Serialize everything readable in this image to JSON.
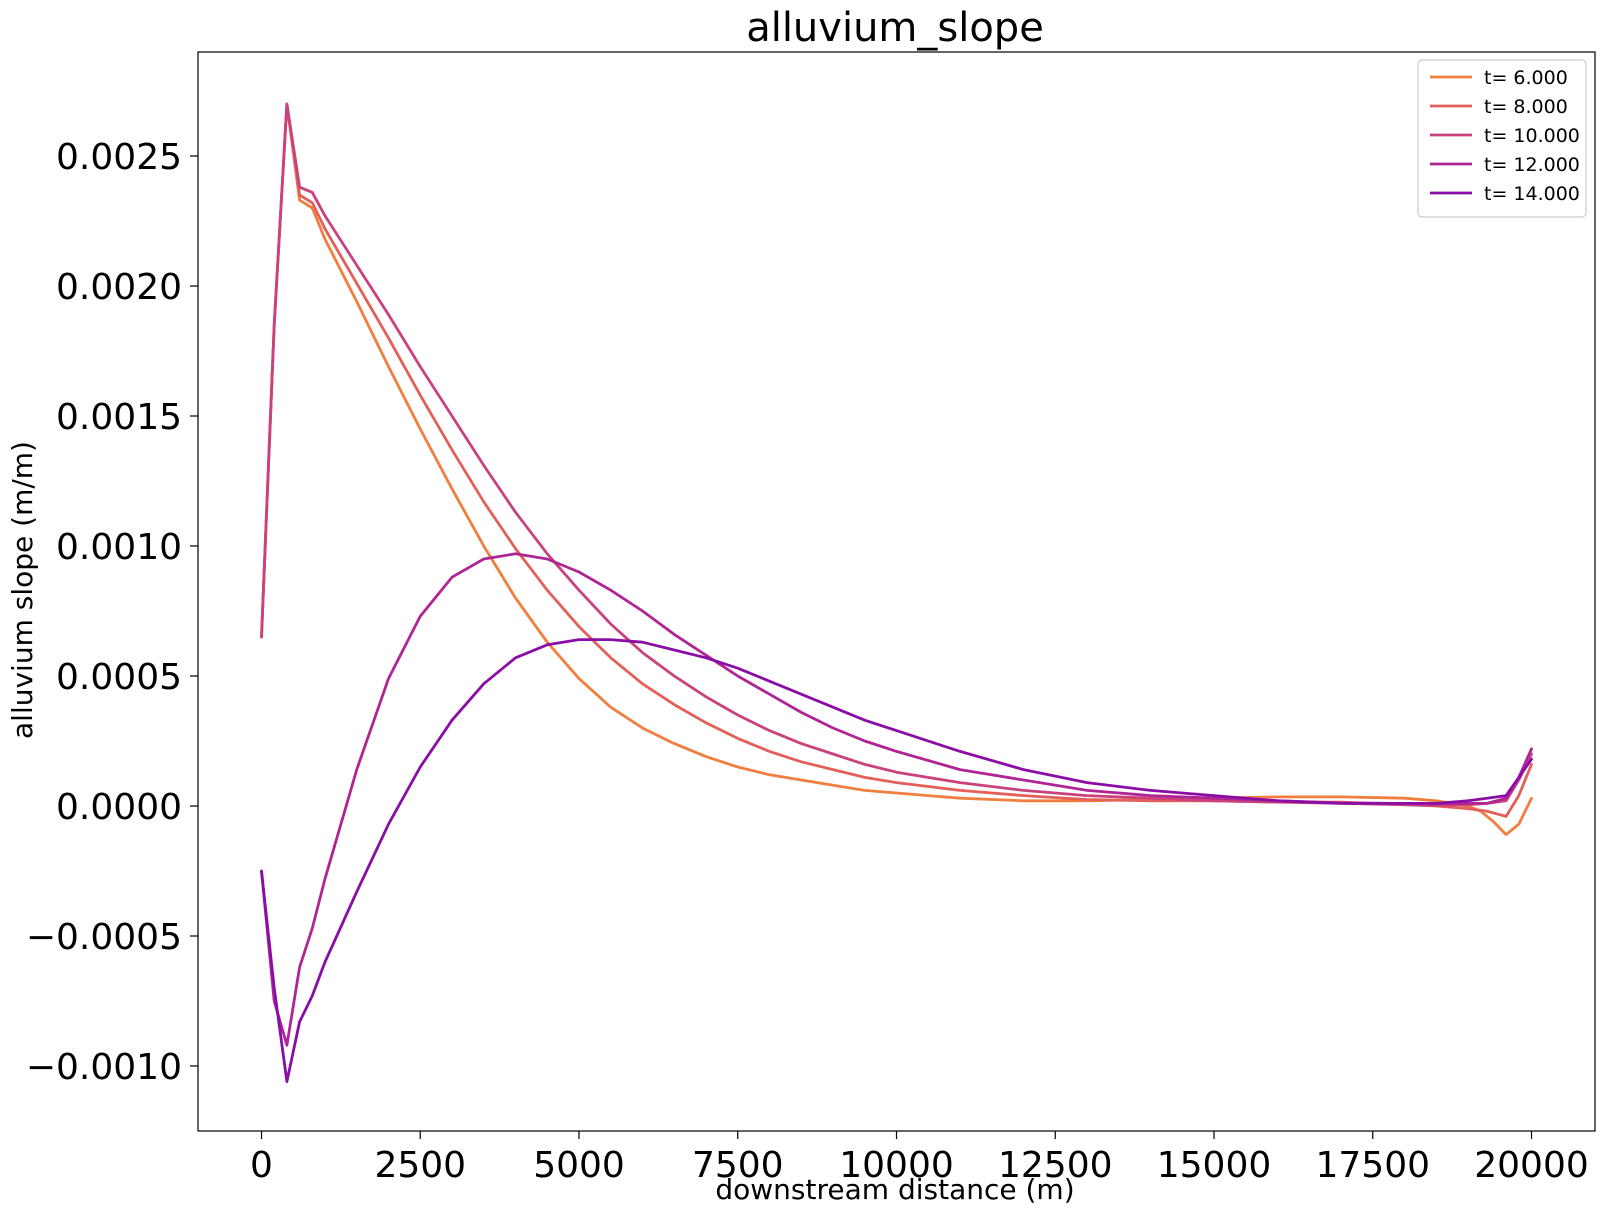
{
  "chart_data": {
    "type": "line",
    "title": "alluvium_slope",
    "xlabel": "downstream distance (m)",
    "ylabel": "alluvium slope (m/m)",
    "xlim": [
      -1000,
      21000
    ],
    "ylim": [
      -0.00125,
      0.0029
    ],
    "xticks": [
      0,
      2500,
      5000,
      7500,
      10000,
      12500,
      15000,
      17500,
      20000
    ],
    "xtick_labels": [
      "0",
      "2500",
      "5000",
      "7500",
      "10000",
      "12500",
      "15000",
      "17500",
      "20000"
    ],
    "yticks": [
      -0.001,
      -0.0005,
      0.0,
      0.0005,
      0.001,
      0.0015,
      0.002,
      0.0025
    ],
    "ytick_labels": [
      "−0.0010",
      "−0.0005",
      "0.0000",
      "0.0005",
      "0.0010",
      "0.0015",
      "0.0020",
      "0.0025"
    ],
    "grid": false,
    "legend_position": "top-right",
    "series": [
      {
        "name": "t= 6.000",
        "color": "#f07f3f",
        "x": [
          0,
          200,
          400,
          600,
          800,
          1000,
          1500,
          2000,
          2500,
          3000,
          3500,
          4000,
          4500,
          5000,
          5500,
          6000,
          6500,
          7000,
          7500,
          8000,
          8500,
          9000,
          9500,
          10000,
          10500,
          11000,
          11500,
          12000,
          13000,
          14000,
          15000,
          16000,
          17000,
          18000,
          18500,
          19000,
          19200,
          19400,
          19600,
          19800,
          20000
        ],
        "values": [
          0.00065,
          0.00185,
          0.0027,
          0.00233,
          0.0023,
          0.00218,
          0.00194,
          0.00169,
          0.00145,
          0.00122,
          0.001,
          0.0008,
          0.00063,
          0.00049,
          0.00038,
          0.0003,
          0.00024,
          0.00019,
          0.00015,
          0.00012,
          0.0001,
          8e-05,
          6e-05,
          5e-05,
          4e-05,
          3e-05,
          2.5e-05,
          2e-05,
          2e-05,
          2.5e-05,
          3e-05,
          3.5e-05,
          3.5e-05,
          3e-05,
          2e-05,
          0.0,
          -2e-05,
          -6e-05,
          -0.00011,
          -7e-05,
          3e-05
        ]
      },
      {
        "name": "t= 8.000",
        "color": "#e3605a",
        "x": [
          0,
          200,
          400,
          600,
          800,
          1000,
          1500,
          2000,
          2500,
          3000,
          3500,
          4000,
          4500,
          5000,
          5500,
          6000,
          6500,
          7000,
          7500,
          8000,
          8500,
          9000,
          9500,
          10000,
          11000,
          12000,
          13000,
          14000,
          15000,
          16000,
          17000,
          18000,
          18500,
          19000,
          19300,
          19600,
          19800,
          20000
        ],
        "values": [
          0.00065,
          0.00185,
          0.0027,
          0.00235,
          0.00232,
          0.00222,
          0.00201,
          0.0018,
          0.00158,
          0.00137,
          0.00117,
          0.00099,
          0.00083,
          0.00069,
          0.00057,
          0.00047,
          0.00039,
          0.00032,
          0.00026,
          0.00021,
          0.00017,
          0.00014,
          0.00011,
          9e-05,
          6e-05,
          4e-05,
          2.5e-05,
          2e-05,
          2e-05,
          1.5e-05,
          1.5e-05,
          5e-06,
          0.0,
          -1e-05,
          -2e-05,
          -4e-05,
          4e-05,
          0.00016
        ]
      },
      {
        "name": "t= 10.000",
        "color": "#c9427d",
        "x": [
          0,
          200,
          400,
          600,
          800,
          1000,
          1500,
          2000,
          2500,
          3000,
          3500,
          4000,
          4500,
          5000,
          5500,
          6000,
          6500,
          7000,
          7500,
          8000,
          8500,
          9000,
          9500,
          10000,
          11000,
          12000,
          13000,
          14000,
          15000,
          16000,
          17000,
          18000,
          18500,
          19000,
          19300,
          19600,
          19800,
          20000
        ],
        "values": [
          0.00065,
          0.00185,
          0.0027,
          0.00238,
          0.00236,
          0.00227,
          0.00208,
          0.00189,
          0.00169,
          0.0015,
          0.00131,
          0.00113,
          0.00097,
          0.00083,
          0.0007,
          0.00059,
          0.0005,
          0.00042,
          0.00035,
          0.00029,
          0.00024,
          0.0002,
          0.00016,
          0.00013,
          9e-05,
          6e-05,
          4e-05,
          3e-05,
          2e-05,
          1.5e-05,
          1e-05,
          5e-06,
          3e-06,
          5e-06,
          1e-05,
          2e-05,
          0.0001,
          0.0002
        ]
      },
      {
        "name": "t= 12.000",
        "color": "#b02594",
        "x": [
          0,
          200,
          400,
          600,
          800,
          1000,
          1500,
          2000,
          2500,
          3000,
          3500,
          4000,
          4500,
          5000,
          5500,
          6000,
          6500,
          7000,
          7500,
          8000,
          8500,
          9000,
          9500,
          10000,
          11000,
          12000,
          13000,
          14000,
          15000,
          16000,
          17000,
          18000,
          18500,
          19000,
          19300,
          19600,
          19800,
          20000
        ],
        "values": [
          -0.00025,
          -0.00075,
          -0.00092,
          -0.00062,
          -0.00047,
          -0.00028,
          0.00014,
          0.00049,
          0.00073,
          0.00088,
          0.00095,
          0.00097,
          0.00095,
          0.0009,
          0.00083,
          0.00075,
          0.00066,
          0.00058,
          0.0005,
          0.00043,
          0.00036,
          0.0003,
          0.00025,
          0.00021,
          0.00014,
          0.0001,
          6e-05,
          4e-05,
          3e-05,
          2e-05,
          1.2e-05,
          1e-05,
          8e-06,
          1e-05,
          1e-05,
          3e-05,
          0.00011,
          0.00022
        ]
      },
      {
        "name": "t= 14.000",
        "color": "#8a0ea6",
        "x": [
          0,
          200,
          400,
          600,
          800,
          1000,
          1500,
          2000,
          2500,
          3000,
          3500,
          4000,
          4500,
          5000,
          5500,
          6000,
          6500,
          7000,
          7500,
          8000,
          8500,
          9000,
          9500,
          10000,
          11000,
          12000,
          13000,
          14000,
          15000,
          16000,
          17000,
          18000,
          18500,
          19000,
          19300,
          19600,
          19800,
          20000
        ],
        "values": [
          -0.00025,
          -0.0007,
          -0.00106,
          -0.00083,
          -0.00073,
          -0.0006,
          -0.00033,
          -7e-05,
          0.00015,
          0.00033,
          0.00047,
          0.00057,
          0.00062,
          0.00064,
          0.00064,
          0.00063,
          0.0006,
          0.00057,
          0.00053,
          0.00048,
          0.00043,
          0.00038,
          0.00033,
          0.00029,
          0.00021,
          0.00014,
          9e-05,
          6e-05,
          4e-05,
          2e-05,
          1e-05,
          1e-05,
          1e-05,
          2e-05,
          3e-05,
          4e-05,
          0.00011,
          0.00018
        ]
      }
    ]
  }
}
